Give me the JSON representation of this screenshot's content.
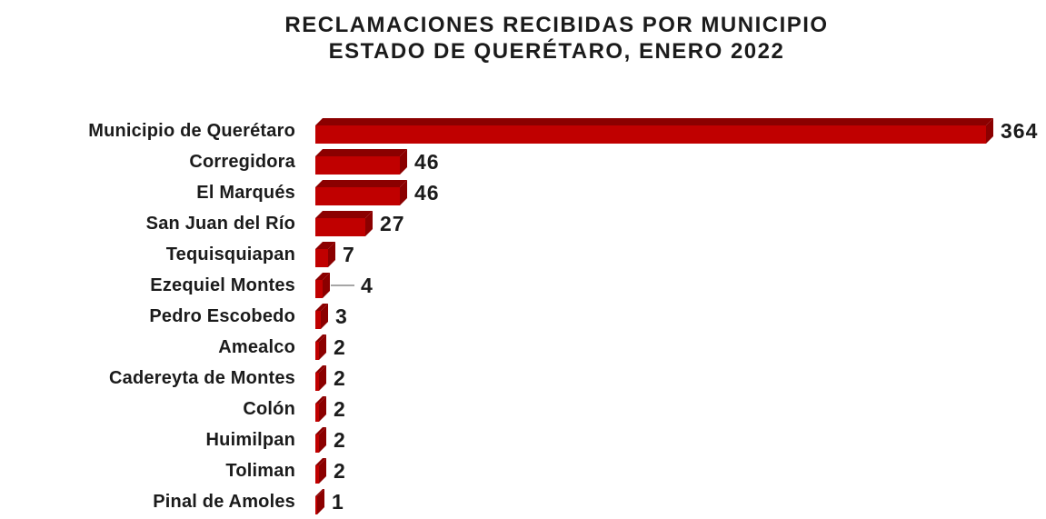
{
  "title": {
    "line1": "RECLAMACIONES RECIBIDAS POR MUNICIPIO",
    "line2": "ESTADO DE QUERÉTARO, ENERO 2022"
  },
  "chart_data": {
    "type": "bar",
    "orientation": "horizontal",
    "title": "RECLAMACIONES RECIBIDAS POR MUNICIPIO ESTADO DE QUERÉTARO, ENERO 2022",
    "categories": [
      "Municipio de Querétaro",
      "Corregidora",
      "El Marqués",
      "San Juan del Río",
      "Tequisquiapan",
      "Ezequiel Montes",
      "Pedro Escobedo",
      "Amealco",
      "Cadereyta de Montes",
      "Colón",
      "Huimilpan",
      "Toliman",
      "Pinal de Amoles"
    ],
    "values": [
      364,
      46,
      46,
      27,
      7,
      4,
      3,
      2,
      2,
      2,
      2,
      2,
      1
    ],
    "xlabel": "",
    "ylabel": "",
    "xlim": [
      0,
      364
    ],
    "grid": false,
    "legend": false,
    "data_labels": true,
    "bar_style": "3d",
    "leader_line_category": "Ezequiel Montes",
    "colors": {
      "bar_front": "#C00000",
      "bar_shade": "#8B0000",
      "label_text": "#1B1B1B",
      "leader_line": "#A6A6A6",
      "background": "#FFFFFF"
    }
  }
}
